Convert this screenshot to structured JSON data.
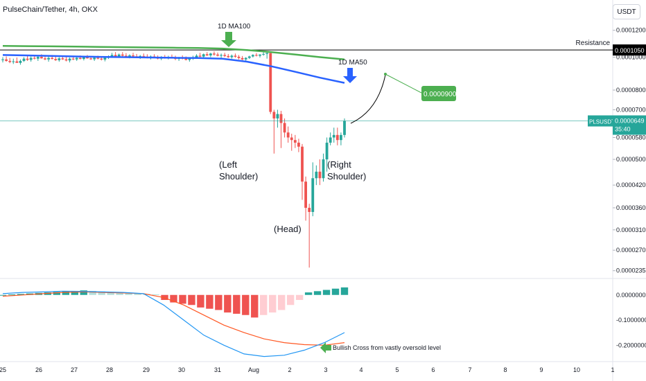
{
  "header": {
    "title": "PulseChain/Tether, 4h, OKX",
    "currency": "USDT"
  },
  "colors": {
    "up": "#26a69a",
    "down": "#ef5350",
    "ma100": "#4caf50",
    "ma50": "#2962ff",
    "macd": "#2196f3",
    "signal": "#ff5722",
    "green_label": "#4caf50",
    "teal_label": "#26a69a",
    "black_label": "#000000"
  },
  "chart_data": [
    {
      "type": "candlestick",
      "price_axis": {
        "ticks": [
          "0.0001200",
          "0.0001000",
          "0.0000800",
          "0.0000700",
          "0.0000580",
          "0.0000500",
          "0.0000420",
          "0.0000360",
          "0.0000310",
          "0.0000270",
          "0.0000235"
        ],
        "scale": "log"
      },
      "time_axis": {
        "ticks": [
          "25",
          "26",
          "27",
          "28",
          "29",
          "30",
          "31",
          "Aug",
          "2",
          "3",
          "4",
          "5",
          "6",
          "7",
          "8",
          "9",
          "10",
          "1"
        ]
      },
      "candles": [
        {
          "o": 9.8e-05,
          "h": 0.0001,
          "l": 9.65e-05,
          "c": 9.85e-05
        },
        {
          "o": 9.85e-05,
          "h": 0.0001005,
          "l": 9.7e-05,
          "c": 9.75e-05
        },
        {
          "o": 9.75e-05,
          "h": 9.95e-05,
          "l": 9.6e-05,
          "c": 9.68e-05
        },
        {
          "o": 9.68e-05,
          "h": 9.9e-05,
          "l": 9.55e-05,
          "c": 9.72e-05
        },
        {
          "o": 9.72e-05,
          "h": 9.98e-05,
          "l": 9.65e-05,
          "c": 9.62e-05
        },
        {
          "o": 9.62e-05,
          "h": 9.85e-05,
          "l": 9.5e-05,
          "c": 9.75e-05
        },
        {
          "o": 9.75e-05,
          "h": 0.0001,
          "l": 9.68e-05,
          "c": 9.9e-05
        },
        {
          "o": 9.9e-05,
          "h": 0.000101,
          "l": 9.75e-05,
          "c": 9.82e-05
        },
        {
          "o": 9.82e-05,
          "h": 0.0001005,
          "l": 9.7e-05,
          "c": 9.95e-05
        },
        {
          "o": 9.95e-05,
          "h": 0.0001015,
          "l": 9.85e-05,
          "c": 9.9e-05
        },
        {
          "o": 9.9e-05,
          "h": 0.000101,
          "l": 9.75e-05,
          "c": 0.0001002
        },
        {
          "o": 0.0001002,
          "h": 0.000102,
          "l": 9.9e-05,
          "c": 9.92e-05
        },
        {
          "o": 9.92e-05,
          "h": 0.000101,
          "l": 9.8e-05,
          "c": 9.85e-05
        },
        {
          "o": 9.85e-05,
          "h": 0.0001005,
          "l": 9.7e-05,
          "c": 9.95e-05
        },
        {
          "o": 9.95e-05,
          "h": 0.0001015,
          "l": 9.85e-05,
          "c": 9.88e-05
        },
        {
          "o": 9.88e-05,
          "h": 0.0001005,
          "l": 9.75e-05,
          "c": 9.8e-05
        },
        {
          "o": 9.8e-05,
          "h": 0.0001,
          "l": 9.7e-05,
          "c": 9.92e-05
        },
        {
          "o": 9.92e-05,
          "h": 0.0001012,
          "l": 9.82e-05,
          "c": 9.85e-05
        },
        {
          "o": 9.85e-05,
          "h": 0.0001005,
          "l": 9.72e-05,
          "c": 9.78e-05
        },
        {
          "o": 9.78e-05,
          "h": 9.98e-05,
          "l": 9.65e-05,
          "c": 9.9e-05
        },
        {
          "o": 9.9e-05,
          "h": 0.000101,
          "l": 9.8e-05,
          "c": 9.85e-05
        },
        {
          "o": 9.85e-05,
          "h": 0.0001002,
          "l": 9.75e-05,
          "c": 9.95e-05
        },
        {
          "o": 9.95e-05,
          "h": 0.0001012,
          "l": 9.85e-05,
          "c": 9.88e-05
        },
        {
          "o": 9.88e-05,
          "h": 0.0001005,
          "l": 9.78e-05,
          "c": 9.98e-05
        },
        {
          "o": 9.98e-05,
          "h": 0.0001015,
          "l": 9.9e-05,
          "c": 9.92e-05
        },
        {
          "o": 9.92e-05,
          "h": 0.0001008,
          "l": 9.82e-05,
          "c": 9.86e-05
        },
        {
          "o": 9.86e-05,
          "h": 0.0001,
          "l": 9.75e-05,
          "c": 9.96e-05
        },
        {
          "o": 9.96e-05,
          "h": 0.000101,
          "l": 9.85e-05,
          "c": 9.9e-05
        },
        {
          "o": 9.9e-05,
          "h": 0.0001005,
          "l": 9.78e-05,
          "c": 9.84e-05
        },
        {
          "o": 9.84e-05,
          "h": 0.0001,
          "l": 9.72e-05,
          "c": 9.95e-05
        },
        {
          "o": 9.95e-05,
          "h": 0.0001012,
          "l": 9.88e-05,
          "c": 0.0001005
        },
        {
          "o": 0.0001005,
          "h": 0.000103,
          "l": 9.95e-05,
          "c": 0.0001015
        },
        {
          "o": 0.0001015,
          "h": 0.0001035,
          "l": 0.0001,
          "c": 0.0001005
        },
        {
          "o": 0.0001005,
          "h": 0.0001025,
          "l": 9.95e-05,
          "c": 0.0001018
        },
        {
          "o": 0.0001018,
          "h": 0.0001035,
          "l": 0.0001005,
          "c": 0.000101
        },
        {
          "o": 0.000101,
          "h": 0.0001028,
          "l": 9.98e-05,
          "c": 0.0001003
        },
        {
          "o": 0.0001003,
          "h": 0.000102,
          "l": 9.92e-05,
          "c": 0.0001012
        },
        {
          "o": 0.0001012,
          "h": 0.000103,
          "l": 0.0001,
          "c": 0.0001006
        },
        {
          "o": 0.0001006,
          "h": 0.0001022,
          "l": 9.95e-05,
          "c": 9.98e-05
        },
        {
          "o": 9.98e-05,
          "h": 0.0001015,
          "l": 9.88e-05,
          "c": 0.0001008
        },
        {
          "o": 0.0001008,
          "h": 0.0001025,
          "l": 9.98e-05,
          "c": 0.0001004
        },
        {
          "o": 0.0001004,
          "h": 0.000102,
          "l": 9.92e-05,
          "c": 9.96e-05
        },
        {
          "o": 9.96e-05,
          "h": 0.0001012,
          "l": 9.85e-05,
          "c": 0.0001005
        },
        {
          "o": 0.0001005,
          "h": 0.000102,
          "l": 9.95e-05,
          "c": 9.98e-05
        },
        {
          "o": 9.98e-05,
          "h": 0.0001012,
          "l": 9.85e-05,
          "c": 9.9e-05
        },
        {
          "o": 9.9e-05,
          "h": 0.0001008,
          "l": 9.8e-05,
          "c": 0.0001
        },
        {
          "o": 0.0001,
          "h": 0.0001015,
          "l": 9.9e-05,
          "c": 9.94e-05
        },
        {
          "o": 9.94e-05,
          "h": 0.000101,
          "l": 9.85e-05,
          "c": 0.0001002
        },
        {
          "o": 0.0001002,
          "h": 0.0001018,
          "l": 9.92e-05,
          "c": 9.96e-05
        },
        {
          "o": 9.96e-05,
          "h": 0.000101,
          "l": 9.8e-05,
          "c": 9.88e-05
        },
        {
          "o": 9.88e-05,
          "h": 0.0001002,
          "l": 9.75e-05,
          "c": 9.95e-05
        },
        {
          "o": 9.95e-05,
          "h": 0.0001012,
          "l": 9.85e-05,
          "c": 9.9e-05
        },
        {
          "o": 9.9e-05,
          "h": 0.0001005,
          "l": 9.78e-05,
          "c": 9.82e-05
        },
        {
          "o": 9.82e-05,
          "h": 9.98e-05,
          "l": 9.7e-05,
          "c": 9.92e-05
        },
        {
          "o": 9.92e-05,
          "h": 0.000101,
          "l": 9.82e-05,
          "c": 0.0001
        },
        {
          "o": 0.0001,
          "h": 0.000102,
          "l": 9.9e-05,
          "c": 0.000101
        },
        {
          "o": 0.000101,
          "h": 0.000103,
          "l": 9.98e-05,
          "c": 0.0001004
        },
        {
          "o": 0.0001004,
          "h": 0.0001025,
          "l": 9.95e-05,
          "c": 0.000102
        },
        {
          "o": 0.000102,
          "h": 0.0001035,
          "l": 0.0001008,
          "c": 0.0001012
        },
        {
          "o": 0.0001012,
          "h": 0.000103,
          "l": 0.0001,
          "c": 0.0001025
        },
        {
          "o": 0.0001025,
          "h": 0.000104,
          "l": 0.000101,
          "c": 0.0001018
        },
        {
          "o": 0.0001018,
          "h": 0.0001032,
          "l": 0.0001005,
          "c": 0.000101
        },
        {
          "o": 0.000101,
          "h": 0.0001025,
          "l": 9.96e-05,
          "c": 0.0001015
        },
        {
          "o": 0.0001015,
          "h": 0.000103,
          "l": 0.0001,
          "c": 0.0001008
        },
        {
          "o": 0.0001008,
          "h": 0.0001022,
          "l": 9.95e-05,
          "c": 0.0001
        },
        {
          "o": 0.0001,
          "h": 0.0001018,
          "l": 9.9e-05,
          "c": 0.000101
        },
        {
          "o": 0.000101,
          "h": 0.0001025,
          "l": 9.96e-05,
          "c": 0.0001003
        },
        {
          "o": 0.0001003,
          "h": 0.0001015,
          "l": 9.85e-05,
          "c": 9.94e-05
        },
        {
          "o": 9.94e-05,
          "h": 0.0001008,
          "l": 9.8e-05,
          "c": 9.85e-05
        },
        {
          "o": 9.85e-05,
          "h": 0.0001,
          "l": 9.72e-05,
          "c": 9.95e-05
        },
        {
          "o": 9.95e-05,
          "h": 0.000101,
          "l": 9.88e-05,
          "c": 0.0001005
        },
        {
          "o": 0.0001005,
          "h": 0.000102,
          "l": 9.98e-05,
          "c": 0.0001015
        },
        {
          "o": 0.0001015,
          "h": 0.0001028,
          "l": 0.0001005,
          "c": 0.000101
        },
        {
          "o": 0.000101,
          "h": 0.000102,
          "l": 9.98e-05,
          "c": 0.0001018
        },
        {
          "o": 0.0001018,
          "h": 0.000104,
          "l": 0.000101,
          "c": 0.0001022
        },
        {
          "o": 0.0001022,
          "h": 0.000104,
          "l": 9.9e-05,
          "c": 0.0001028
        },
        {
          "o": 0.0001028,
          "h": 0.000103,
          "l": 6.8e-05,
          "c": 6.9e-05
        },
        {
          "o": 6.9e-05,
          "h": 7e-05,
          "l": 5.2e-05,
          "c": 6.6e-05
        },
        {
          "o": 6.6e-05,
          "h": 7e-05,
          "l": 6.2e-05,
          "c": 6.8e-05
        },
        {
          "o": 6.8e-05,
          "h": 6.95e-05,
          "l": 5.4e-05,
          "c": 6.4e-05
        },
        {
          "o": 6.4e-05,
          "h": 6.6e-05,
          "l": 5.8e-05,
          "c": 6e-05
        },
        {
          "o": 6e-05,
          "h": 6.25e-05,
          "l": 5.6e-05,
          "c": 5.8e-05
        },
        {
          "o": 5.8e-05,
          "h": 5.95e-05,
          "l": 5.3e-05,
          "c": 5.7e-05
        },
        {
          "o": 5.7e-05,
          "h": 5.9e-05,
          "l": 5.4e-05,
          "c": 5.6e-05
        },
        {
          "o": 5.6e-05,
          "h": 5.75e-05,
          "l": 5.25e-05,
          "c": 5.45e-05
        },
        {
          "o": 5.45e-05,
          "h": 5.55e-05,
          "l": 3.8e-05,
          "c": 4.3e-05
        },
        {
          "o": 4.3e-05,
          "h": 4.45e-05,
          "l": 3.3e-05,
          "c": 3.6e-05
        },
        {
          "o": 3.6e-05,
          "h": 3.7e-05,
          "l": 2.4e-05,
          "c": 3.5e-05
        },
        {
          "o": 3.5e-05,
          "h": 4.9e-05,
          "l": 3.4e-05,
          "c": 4.4e-05
        },
        {
          "o": 4.4e-05,
          "h": 4.8e-05,
          "l": 4.2e-05,
          "c": 4.6e-05
        },
        {
          "o": 4.6e-05,
          "h": 5e-05,
          "l": 4.2e-05,
          "c": 4.4e-05
        },
        {
          "o": 4.4e-05,
          "h": 5.2e-05,
          "l": 4.3e-05,
          "c": 5e-05
        },
        {
          "o": 5e-05,
          "h": 5.8e-05,
          "l": 4.6e-05,
          "c": 5.6e-05
        },
        {
          "o": 5.6e-05,
          "h": 6e-05,
          "l": 5.5e-05,
          "c": 5.8e-05
        },
        {
          "o": 5.8e-05,
          "h": 6.2e-05,
          "l": 5.6e-05,
          "c": 5.9e-05
        },
        {
          "o": 5.9e-05,
          "h": 6.2e-05,
          "l": 5.5e-05,
          "c": 5.7e-05
        },
        {
          "o": 5.7e-05,
          "h": 6e-05,
          "l": 5.5e-05,
          "c": 5.9e-05
        },
        {
          "o": 5.9e-05,
          "h": 6.6e-05,
          "l": 5.8e-05,
          "c": 6.49e-05
        }
      ],
      "ma100": [
        0.000108,
        0.0001078,
        0.0001076,
        0.0001074,
        0.0001072,
        0.000107,
        0.0001068,
        0.0001066,
        0.0001064,
        0.000106,
        0.000105,
        0.0001035,
        0.0001018,
        0.0001,
        9.85e-05
      ],
      "ma50": [
        0.0001015,
        0.0001012,
        0.0001008,
        0.0001005,
        0.0001002,
        0.0001,
        9.98e-05,
        9.96e-05,
        9.94e-05,
        9.9e-05,
        9.7e-05,
        9.4e-05,
        9.05e-05,
        8.7e-05,
        8.4e-05
      ],
      "resistance": 0.000105,
      "last_price": 6.49e-05,
      "target": 9e-05,
      "labels": {
        "ma100": "1D MA100",
        "ma50": "1D MA50",
        "resistance": "Resistance",
        "left_shoulder": [
          "(Left",
          "Shoulder)"
        ],
        "head": "(Head)",
        "right_shoulder": [
          "(Right",
          "Shoulder)"
        ],
        "target": "0.0000900",
        "resistance_price": "0.0001050",
        "symbol": "PLSUSDT",
        "last_price": "0.0000649",
        "countdown": "35:40"
      }
    },
    {
      "type": "bar",
      "name": "MACD",
      "axis": {
        "ticks": [
          "0.0000000",
          "-0.1000000",
          "-0.2000000"
        ],
        "range": [
          -0.26,
          0.06
        ]
      },
      "histogram": [
        0.0,
        0.002,
        0.004,
        0.006,
        0.008,
        0.01,
        0.012,
        0.014,
        0.016,
        0.018,
        0.016,
        0.014,
        0.012,
        0.01,
        0.008,
        0.006,
        0.004,
        0.002,
        -0.02,
        -0.03,
        -0.035,
        -0.04,
        -0.05,
        -0.055,
        -0.06,
        -0.07,
        -0.075,
        -0.08,
        -0.09,
        -0.08,
        -0.07,
        -0.06,
        -0.04,
        -0.02,
        0.01,
        0.015,
        0.02,
        0.025,
        0.03
      ],
      "macd_line": [
        0.005,
        0.01,
        0.012,
        0.015,
        0.014,
        0.012,
        0.01,
        0.005,
        -0.04,
        -0.1,
        -0.16,
        -0.2,
        -0.235,
        -0.245,
        -0.24,
        -0.22,
        -0.19,
        -0.15
      ],
      "signal_line": [
        -0.005,
        0.0,
        0.005,
        0.01,
        0.012,
        0.01,
        0.008,
        0.005,
        -0.01,
        -0.04,
        -0.08,
        -0.12,
        -0.15,
        -0.175,
        -0.19,
        -0.198,
        -0.2,
        -0.19
      ],
      "annotation": "Bullish Cross from vastly oversold level"
    }
  ]
}
